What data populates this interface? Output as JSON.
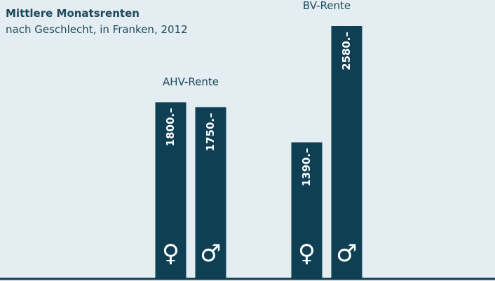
{
  "chart_data": {
    "type": "bar",
    "title": "Mittlere Monatsrenten",
    "subtitle": "nach Geschlecht, in Franken, 2012",
    "categories": [
      "AHV-Rente",
      "BV-Rente"
    ],
    "series": [
      {
        "name": "♀",
        "color": "#0e3f53",
        "values": [
          1800,
          1390
        ],
        "value_labels": [
          "1800.–",
          "1390.–"
        ]
      },
      {
        "name": "♂",
        "color": "#0e3f53",
        "values": [
          1750,
          2580
        ],
        "value_labels": [
          "1750.–",
          "2580.–"
        ]
      }
    ]
  }
}
